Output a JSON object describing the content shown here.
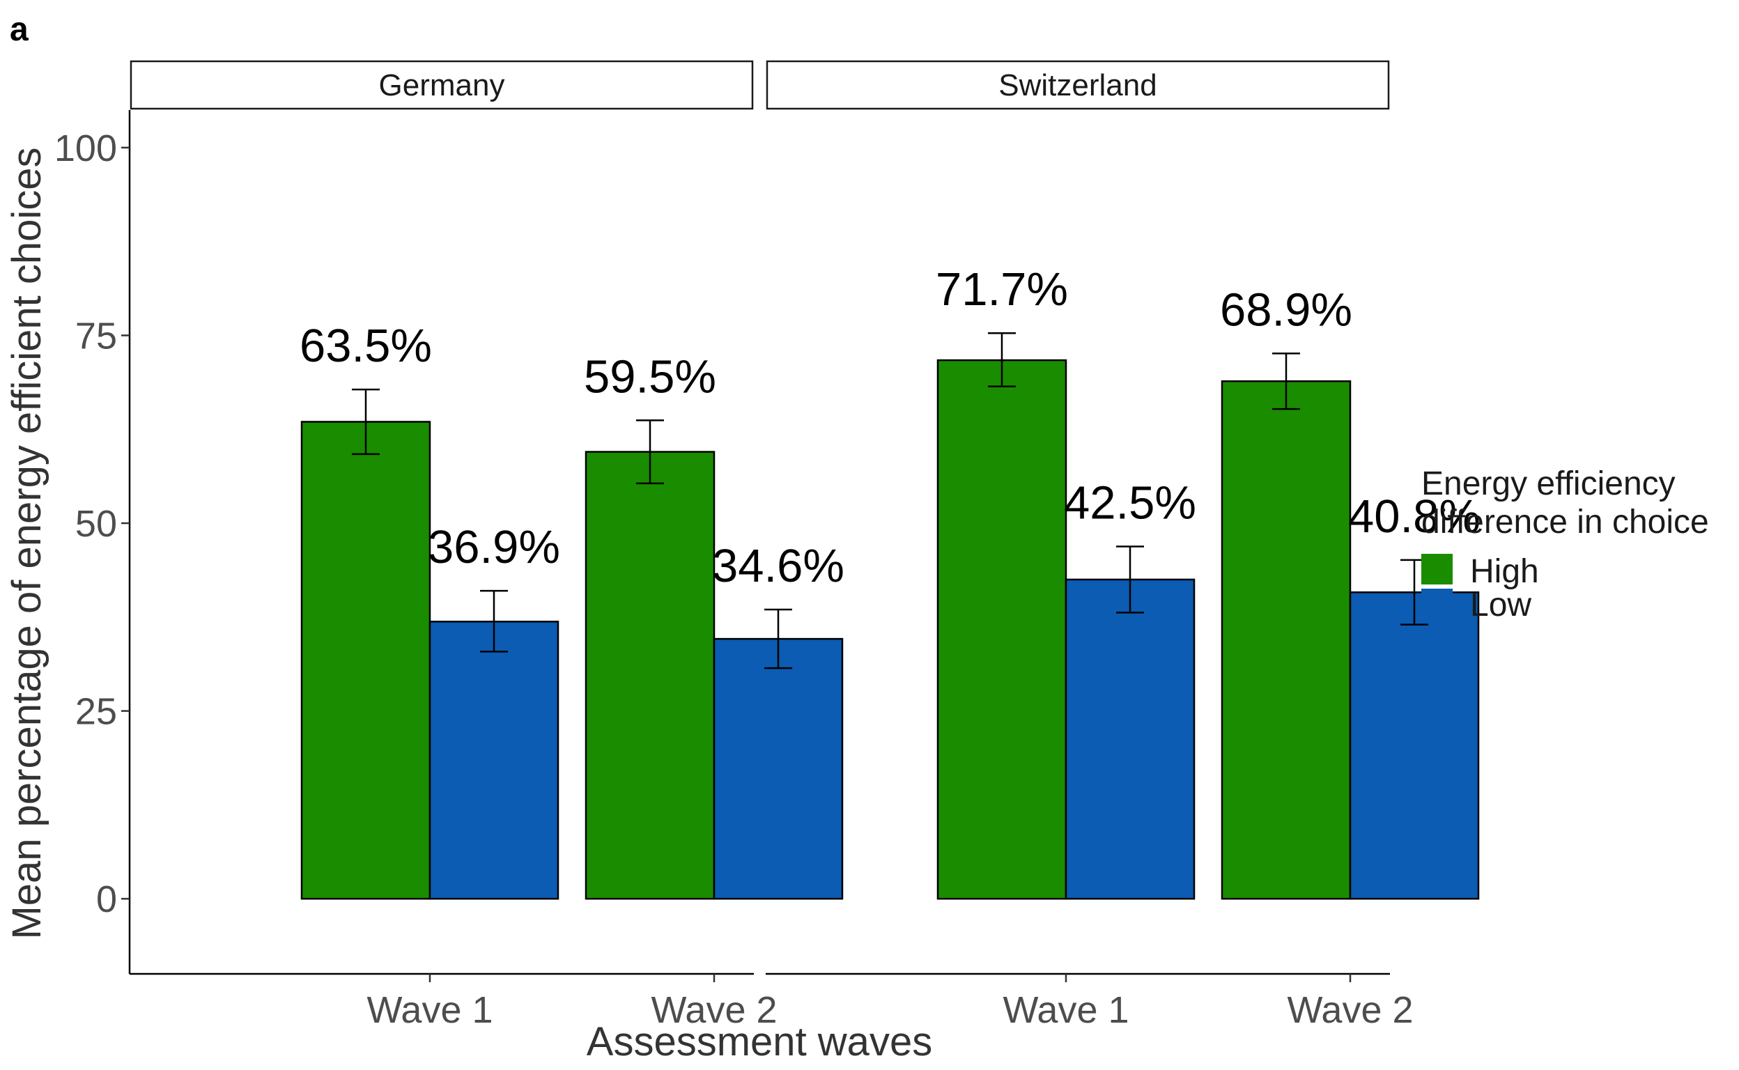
{
  "figure_label": "a",
  "chart_data": {
    "type": "bar",
    "panels": [
      "Germany",
      "Switzerland"
    ],
    "categories": [
      "Wave 1",
      "Wave 2"
    ],
    "series": [
      {
        "name": "High",
        "color": "#1a8c00",
        "values": [
          [
            63.5,
            59.5
          ],
          [
            71.7,
            68.9
          ]
        ],
        "labels": [
          [
            "63.5%",
            "59.5%"
          ],
          [
            "71.7%",
            "68.9%"
          ]
        ],
        "error_low": [
          [
            59.2,
            55.3
          ],
          [
            68.2,
            65.2
          ]
        ],
        "error_high": [
          [
            67.8,
            63.7
          ],
          [
            75.3,
            72.6
          ]
        ]
      },
      {
        "name": "Low",
        "color": "#0b5cb2",
        "values": [
          [
            36.9,
            34.6
          ],
          [
            42.5,
            40.8
          ]
        ],
        "labels": [
          [
            "36.9%",
            "34.6%"
          ],
          [
            "42.5%",
            "40.8%"
          ]
        ],
        "error_low": [
          [
            32.9,
            30.7
          ],
          [
            38.1,
            36.5
          ]
        ],
        "error_high": [
          [
            41.0,
            38.5
          ],
          [
            46.9,
            45.1
          ]
        ]
      }
    ],
    "xlabel": "Assessment waves",
    "ylabel": "Mean percentage of energy efficient choices",
    "ylim": [
      -10,
      105
    ],
    "yticks": [
      0,
      25,
      50,
      75,
      100
    ],
    "ytick_labels": [
      "0",
      "25",
      "50",
      "75",
      "100"
    ],
    "legend": {
      "title_line1": "Energy efficiency",
      "title_line2": "difference in choice",
      "position": "right"
    },
    "grid": false
  }
}
